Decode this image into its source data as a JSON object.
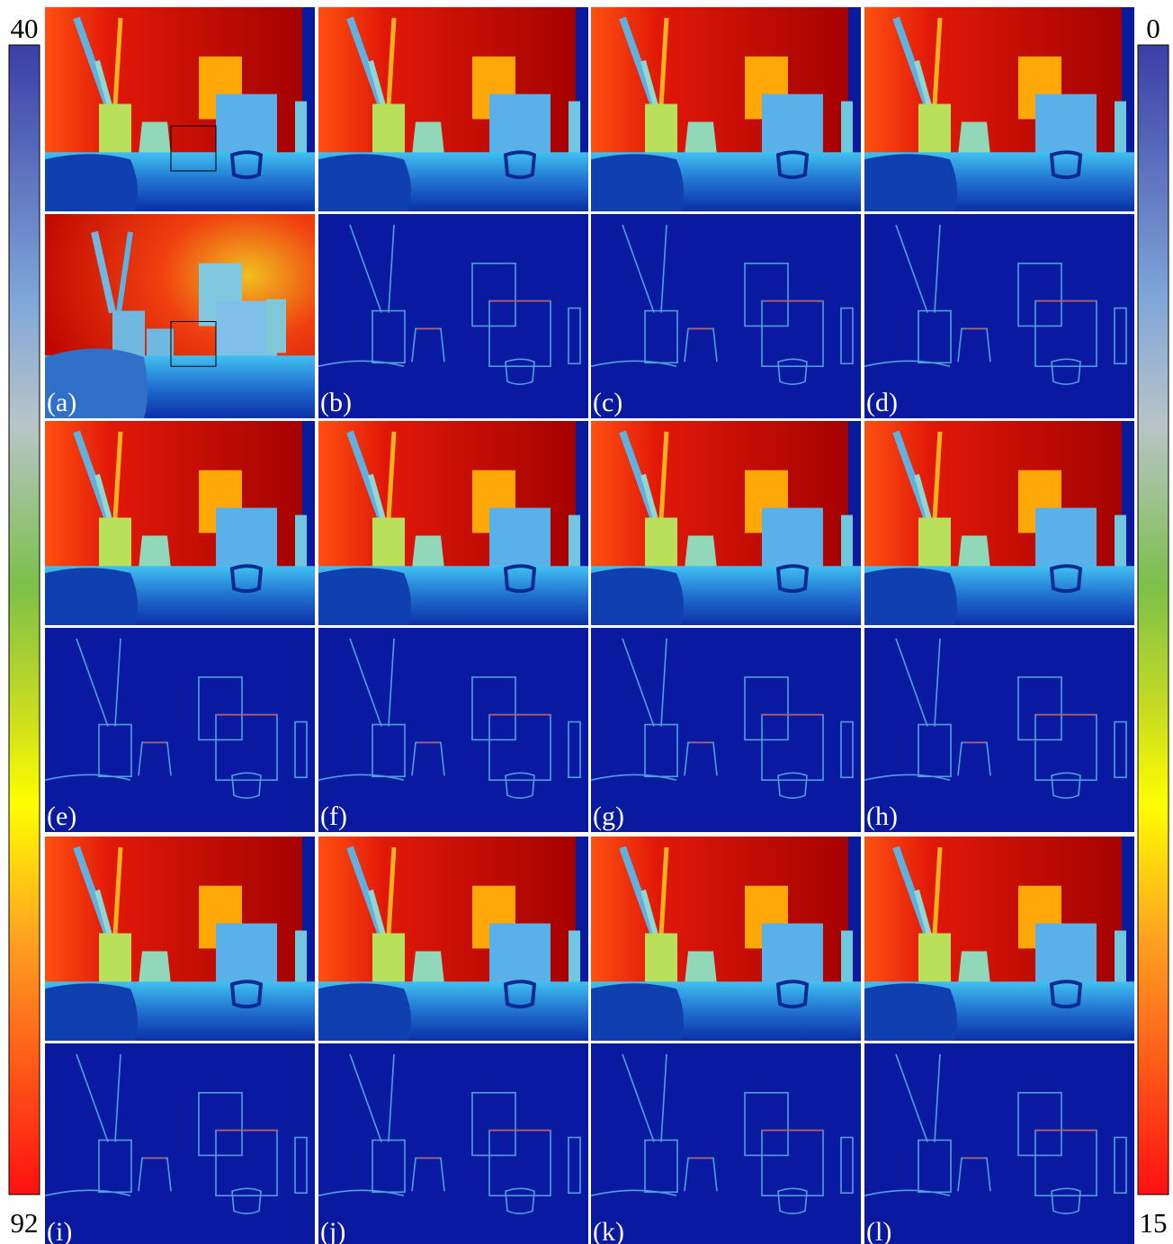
{
  "colorbars": {
    "left": {
      "top": "40",
      "bottom": "92"
    },
    "right": {
      "top": "0",
      "bottom": "15"
    }
  },
  "panel_labels": [
    "(a)",
    "(b)",
    "(c)",
    "(d)",
    "(e)",
    "(f)",
    "(g)",
    "(h)",
    "(i)",
    "(j)",
    "(k)",
    "(l)"
  ]
}
